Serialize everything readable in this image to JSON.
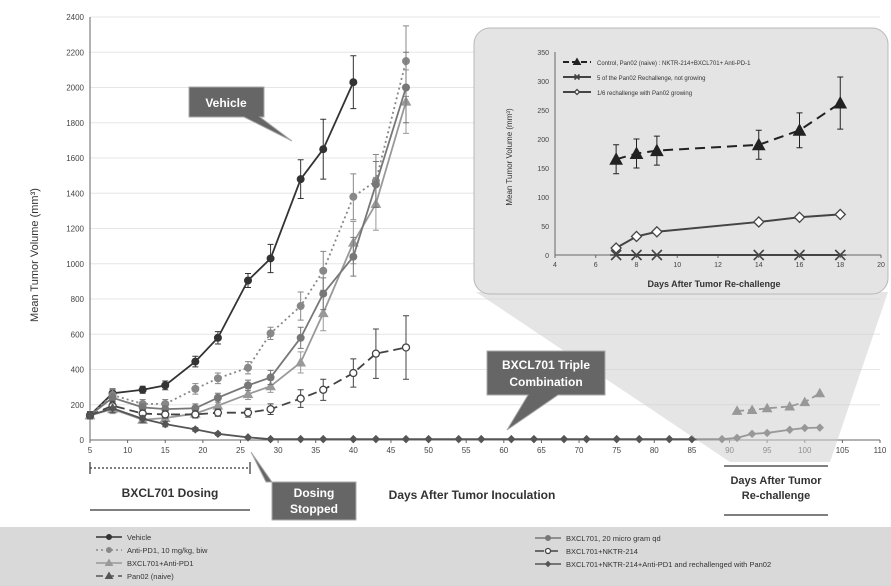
{
  "chart_data": [
    {
      "type": "line",
      "xlabel": "Days After Tumor Inoculation",
      "ylabel": "Mean Tumor Volume (mm³)",
      "xlim": [
        5,
        110
      ],
      "ylim": [
        0,
        2400
      ],
      "x_ticks": [
        "5",
        "10",
        "15",
        "20",
        "25",
        "30",
        "35",
        "40",
        "45",
        "50",
        "55",
        "60",
        "65",
        "70",
        "75",
        "80",
        "85",
        "90",
        "95",
        "100",
        "105",
        "110"
      ],
      "y_ticks": [
        "0",
        "200",
        "400",
        "600",
        "800",
        "1000",
        "1200",
        "1400",
        "1600",
        "1800",
        "2000",
        "2200",
        "2400"
      ],
      "grid": "horizontal",
      "series": [
        {
          "name": "Vehicle",
          "color": "#333333",
          "dash": "",
          "marker": "circle-filled",
          "x": [
            5,
            8,
            12,
            15,
            19,
            22,
            26,
            29,
            33,
            36,
            40
          ],
          "y": [
            140,
            265,
            285,
            310,
            445,
            580,
            905,
            1030,
            1480,
            1650,
            2030
          ],
          "err": [
            20,
            25,
            20,
            25,
            30,
            35,
            40,
            80,
            110,
            170,
            150
          ]
        },
        {
          "name": "Anti-PD1, 10 mg/kg, biw",
          "color": "#888888",
          "dash": "2 3",
          "marker": "circle-filled",
          "x": [
            5,
            8,
            12,
            15,
            19,
            22,
            26,
            29,
            33,
            36,
            40,
            43,
            47
          ],
          "y": [
            140,
            255,
            205,
            205,
            290,
            350,
            410,
            605,
            760,
            960,
            1380,
            1470,
            2150
          ],
          "err": [
            20,
            30,
            25,
            25,
            30,
            30,
            35,
            35,
            80,
            110,
            130,
            150,
            200
          ]
        },
        {
          "name": "BXCL701+Anti-PD1",
          "color": "#999999",
          "dash": "",
          "marker": "triangle",
          "x": [
            5,
            8,
            12,
            15,
            19,
            22,
            26,
            29,
            33,
            36,
            40,
            43,
            47
          ],
          "y": [
            140,
            175,
            115,
            125,
            150,
            195,
            260,
            305,
            440,
            720,
            1120,
            1340,
            1920
          ],
          "err": [
            20,
            25,
            20,
            20,
            25,
            30,
            30,
            35,
            60,
            100,
            120,
            150,
            180
          ]
        },
        {
          "name": "Pan02 (naive)",
          "color": "#555555",
          "dash": "7 4",
          "marker": "triangle",
          "x": [
            91,
            93,
            95,
            98,
            100,
            102
          ],
          "y": [
            165,
            170,
            180,
            190,
            215,
            265
          ],
          "err": [
            0,
            0,
            0,
            0,
            0,
            0
          ]
        },
        {
          "name": "BXCL701, 20 micro gram qd",
          "color": "#777777",
          "dash": "",
          "marker": "circle-filled",
          "x": [
            5,
            8,
            12,
            15,
            19,
            22,
            26,
            29,
            33,
            36,
            40,
            43,
            47
          ],
          "y": [
            140,
            240,
            185,
            175,
            180,
            240,
            310,
            355,
            580,
            830,
            1040,
            1450,
            2000
          ],
          "err": [
            20,
            25,
            20,
            20,
            25,
            25,
            30,
            40,
            60,
            90,
            110,
            130,
            200
          ]
        },
        {
          "name": "BXCL701+NKTR-214",
          "color": "#444444",
          "dash": "9 5",
          "marker": "circle-open",
          "x": [
            5,
            8,
            12,
            15,
            19,
            22,
            26,
            29,
            33,
            36,
            40,
            43,
            47
          ],
          "y": [
            140,
            195,
            150,
            145,
            145,
            155,
            155,
            175,
            235,
            285,
            380,
            490,
            525
          ],
          "err": [
            20,
            25,
            20,
            20,
            20,
            20,
            25,
            30,
            50,
            60,
            80,
            140,
            180
          ]
        },
        {
          "name": "BXCL701+NKTR-214+Anti-PD1  and rechallenged with Pan02",
          "color": "#555555",
          "dash": "",
          "marker": "diamond",
          "x": [
            5,
            8,
            12,
            15,
            19,
            22,
            26,
            29,
            33,
            36,
            40,
            43,
            47,
            50,
            54,
            57,
            61,
            64,
            68,
            71,
            75,
            78,
            82,
            85,
            89,
            91,
            93,
            95,
            98,
            100,
            102
          ],
          "y": [
            140,
            180,
            120,
            90,
            60,
            35,
            15,
            5,
            5,
            5,
            5,
            5,
            5,
            5,
            5,
            5,
            5,
            5,
            5,
            5,
            5,
            5,
            5,
            5,
            5,
            12,
            35,
            40,
            58,
            68,
            70
          ],
          "err": [
            20,
            25,
            20,
            15,
            10,
            8,
            5,
            0,
            0,
            0,
            0,
            0,
            0,
            0,
            0,
            0,
            0,
            0,
            0,
            0,
            0,
            0,
            0,
            0,
            0,
            0,
            0,
            0,
            0,
            0,
            0
          ]
        }
      ]
    },
    {
      "type": "line",
      "inset": true,
      "xlabel": "Days After Tumor Re-challenge",
      "ylabel": "Mean Tumor Volume (mm³)",
      "xlim": [
        4,
        20
      ],
      "ylim": [
        0,
        350
      ],
      "x_ticks": [
        "4",
        "6",
        "8",
        "10",
        "12",
        "14",
        "16",
        "18",
        "20"
      ],
      "y_ticks": [
        "0",
        "50",
        "100",
        "150",
        "200",
        "250",
        "300",
        "350"
      ],
      "series": [
        {
          "name": "Control, Pan02 (naive) : NKTR-214+BXCL701+ Anti-PD-1",
          "color": "#222222",
          "dash": "10 6",
          "marker": "triangle",
          "x": [
            7,
            8,
            9,
            14,
            16,
            18
          ],
          "y": [
            165,
            175,
            180,
            190,
            215,
            262
          ],
          "err": [
            25,
            25,
            25,
            25,
            30,
            45
          ]
        },
        {
          "name": "5 of the Pan02 Rechallenge,  not growing",
          "color": "#444444",
          "dash": "",
          "marker": "cross",
          "x": [
            7,
            8,
            9,
            14,
            16,
            18
          ],
          "y": [
            0,
            0,
            0,
            0,
            0,
            0
          ],
          "err": [
            0,
            0,
            0,
            0,
            0,
            0
          ]
        },
        {
          "name": "1/6 rechallenge with Pan02 growing",
          "color": "#444444",
          "dash": "",
          "marker": "diamond-open",
          "x": [
            7,
            8,
            9,
            14,
            16,
            18
          ],
          "y": [
            12,
            32,
            40,
            57,
            65,
            70
          ],
          "err": [
            0,
            0,
            0,
            0,
            0,
            0
          ]
        }
      ]
    }
  ],
  "callouts": {
    "vehicle": "Vehicle",
    "triple_line1": "BXCL701 Triple",
    "triple_line2": "Combination",
    "dosing_line1": "Dosing",
    "dosing_line2": "Stopped"
  },
  "annotations": {
    "dosing_period": "BXCL701 Dosing",
    "rechallenge_line1": "Days After Tumor",
    "rechallenge_line2": "Re-challenge"
  }
}
